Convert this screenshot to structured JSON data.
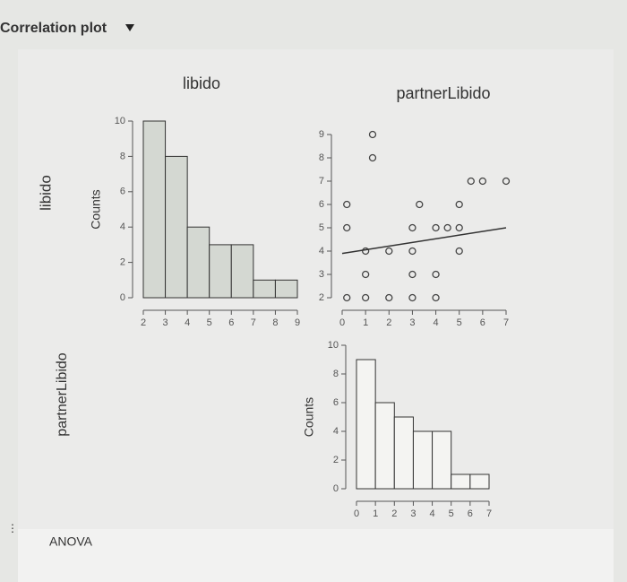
{
  "header": {
    "title": "Correlation plot"
  },
  "column_labels": [
    "libido",
    "partnerLibido"
  ],
  "row_labels": [
    "libido",
    "partnerLibido"
  ],
  "footer": {
    "section": "ANOVA"
  },
  "chart_data": [
    {
      "type": "histogram",
      "ylabel": "Counts",
      "bins": [
        2,
        3,
        4,
        5,
        6,
        7,
        8,
        9
      ],
      "values": [
        10,
        8,
        4,
        3,
        3,
        1,
        1
      ],
      "xlim": [
        2,
        9
      ],
      "xticks": [
        2,
        3,
        4,
        5,
        6,
        7,
        8,
        9
      ],
      "ylim": [
        0,
        10
      ],
      "yticks": [
        0,
        2,
        4,
        6,
        8,
        10
      ],
      "color": "#d4d8d2"
    },
    {
      "type": "scatter",
      "x": [
        0.2,
        0.2,
        0.2,
        1,
        1,
        1,
        1.3,
        1.3,
        2,
        2,
        3,
        3,
        3,
        3,
        3.3,
        4,
        4,
        4,
        4.5,
        5,
        5,
        5,
        5.5,
        6,
        7
      ],
      "values": [
        2,
        5,
        6,
        2,
        3,
        4,
        8,
        9,
        2,
        4,
        2,
        3,
        4,
        5,
        6,
        2,
        3,
        5,
        5,
        4,
        5,
        6,
        7,
        7,
        7
      ],
      "regression": {
        "x": [
          0,
          7
        ],
        "y": [
          3.9,
          5
        ]
      },
      "xlim": [
        0,
        7
      ],
      "xticks": [
        0,
        1,
        2,
        3,
        4,
        5,
        6,
        7
      ],
      "ylim": [
        2,
        9
      ],
      "yticks": [
        2,
        3,
        4,
        5,
        6,
        7,
        8,
        9
      ],
      "color": "#444444"
    },
    {
      "type": "histogram",
      "ylabel": "Counts",
      "bins": [
        0,
        1,
        2,
        3,
        4,
        5,
        6,
        7
      ],
      "values": [
        9,
        6,
        5,
        4,
        4,
        1,
        1
      ],
      "xlim": [
        0,
        7
      ],
      "xticks": [
        0,
        1,
        2,
        3,
        4,
        5,
        6,
        7
      ],
      "ylim": [
        0,
        10
      ],
      "yticks": [
        0,
        2,
        4,
        6,
        8,
        10
      ],
      "color": "#f4f4f2"
    }
  ]
}
